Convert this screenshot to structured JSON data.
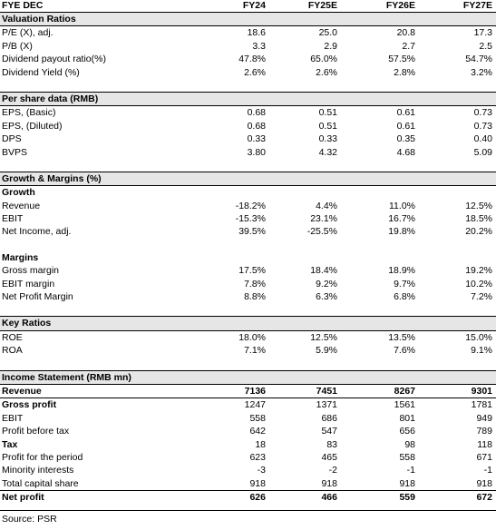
{
  "header": {
    "label": "FYE DEC",
    "years": [
      "FY24",
      "FY25E",
      "FY26E",
      "FY27E"
    ]
  },
  "sections": [
    {
      "id": "valuation",
      "title": "Valuation Ratios",
      "rows": [
        {
          "label": "P/E (X), adj.",
          "values": [
            "18.6",
            "25.0",
            "20.8",
            "17.3"
          ]
        },
        {
          "label": "P/B (X)",
          "values": [
            "3.3",
            "2.9",
            "2.7",
            "2.5"
          ]
        },
        {
          "label": "Dividend payout ratio(%)",
          "values": [
            "47.8%",
            "65.0%",
            "57.5%",
            "54.7%"
          ]
        },
        {
          "label": "Dividend Yield (%)",
          "values": [
            "2.6%",
            "2.6%",
            "2.8%",
            "3.2%"
          ]
        }
      ]
    },
    {
      "id": "pershare",
      "title": "Per share data (RMB)",
      "rows": [
        {
          "label": "EPS, (Basic)",
          "values": [
            "0.68",
            "0.51",
            "0.61",
            "0.73"
          ]
        },
        {
          "label": "EPS, (Diluted)",
          "values": [
            "0.68",
            "0.51",
            "0.61",
            "0.73"
          ]
        },
        {
          "label": "DPS",
          "values": [
            "0.33",
            "0.33",
            "0.35",
            "0.40"
          ]
        },
        {
          "label": "BVPS",
          "values": [
            "3.80",
            "4.32",
            "4.68",
            "5.09"
          ]
        }
      ]
    },
    {
      "id": "growth",
      "title": "Growth & Margins (%)",
      "sub1": "Growth",
      "rows1": [
        {
          "label": "Revenue",
          "values": [
            "-18.2%",
            "4.4%",
            "11.0%",
            "12.5%"
          ]
        },
        {
          "label": "EBIT",
          "values": [
            "-15.3%",
            "23.1%",
            "16.7%",
            "18.5%"
          ]
        },
        {
          "label": "Net Income, adj.",
          "values": [
            "39.5%",
            "-25.5%",
            "19.8%",
            "20.2%"
          ]
        }
      ],
      "sub2": "Margins",
      "rows2": [
        {
          "label": "Gross margin",
          "values": [
            "17.5%",
            "18.4%",
            "18.9%",
            "19.2%"
          ]
        },
        {
          "label": "EBIT margin",
          "values": [
            "7.8%",
            "9.2%",
            "9.7%",
            "10.2%"
          ]
        },
        {
          "label": "Net Profit Margin",
          "values": [
            "8.8%",
            "6.3%",
            "6.8%",
            "7.2%"
          ]
        }
      ]
    },
    {
      "id": "keyratios",
      "title": "Key Ratios",
      "rows": [
        {
          "label": "ROE",
          "values": [
            "18.0%",
            "12.5%",
            "13.5%",
            "15.0%"
          ]
        },
        {
          "label": "ROA",
          "values": [
            "7.1%",
            "5.9%",
            "7.6%",
            "9.1%"
          ]
        }
      ]
    },
    {
      "id": "income",
      "title": "Income Statement (RMB mn)",
      "rows": [
        {
          "label": "Revenue",
          "values": [
            "7136",
            "7451",
            "8267",
            "9301"
          ],
          "bold": true
        },
        {
          "label": "Gross profit",
          "values": [
            "1247",
            "1371",
            "1561",
            "1781"
          ],
          "bold": true
        },
        {
          "label": "EBIT",
          "values": [
            "558",
            "686",
            "801",
            "949"
          ]
        },
        {
          "label": "Profit before tax",
          "values": [
            "642",
            "547",
            "656",
            "789"
          ]
        },
        {
          "label": "Tax",
          "values": [
            "18",
            "83",
            "98",
            "118"
          ],
          "bold": true
        },
        {
          "label": "Profit for the period",
          "values": [
            "623",
            "465",
            "558",
            "671"
          ]
        },
        {
          "label": "Minority interests",
          "values": [
            "-3",
            "-2",
            "-1",
            "-1"
          ]
        },
        {
          "label": "Total capital share",
          "values": [
            "918",
            "918",
            "918",
            "918"
          ]
        },
        {
          "label": "Net profit",
          "values": [
            "626",
            "466",
            "559",
            "672"
          ],
          "bold": true
        }
      ]
    }
  ],
  "source": "Source: PSR"
}
